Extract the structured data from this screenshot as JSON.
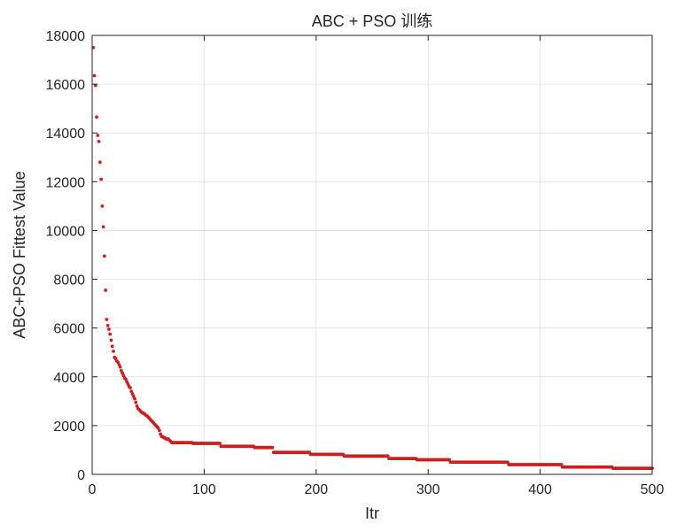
{
  "chart_data": {
    "type": "scatter",
    "title": "ABC + PSO 训练",
    "xlabel": "Itr",
    "ylabel": "ABC+PSO Fittest Value",
    "xlim": [
      0,
      500
    ],
    "ylim": [
      0,
      18000
    ],
    "xticks": [
      0,
      100,
      200,
      300,
      400,
      500
    ],
    "yticks": [
      0,
      2000,
      4000,
      6000,
      8000,
      10000,
      12000,
      14000,
      16000,
      18000
    ],
    "grid": true,
    "legend": "none",
    "marker_color": "#cc1f1f",
    "series": [
      {
        "points": [
          [
            1,
            17500
          ],
          [
            2,
            16350
          ],
          [
            3,
            15950
          ],
          [
            4,
            14650
          ],
          [
            5,
            13900
          ],
          [
            6,
            13650
          ],
          [
            7,
            12800
          ],
          [
            8,
            12100
          ],
          [
            9,
            11000
          ],
          [
            10,
            10150
          ],
          [
            11,
            8950
          ],
          [
            12,
            7550
          ],
          [
            13,
            6350
          ],
          [
            14,
            6100
          ],
          [
            15,
            5950
          ],
          [
            16,
            5750
          ],
          [
            17,
            5500
          ],
          [
            18,
            5250
          ],
          [
            19,
            5050
          ],
          [
            20,
            4800
          ],
          [
            21,
            4750
          ],
          [
            22,
            4650
          ],
          [
            23,
            4600
          ],
          [
            24,
            4500
          ],
          [
            25,
            4400
          ],
          [
            26,
            4250
          ],
          [
            27,
            4150
          ],
          [
            28,
            4050
          ],
          [
            29,
            3950
          ],
          [
            30,
            3900
          ],
          [
            31,
            3800
          ],
          [
            32,
            3700
          ],
          [
            33,
            3600
          ],
          [
            34,
            3550
          ],
          [
            35,
            3400
          ],
          [
            36,
            3300
          ],
          [
            37,
            3200
          ],
          [
            38,
            3100
          ],
          [
            39,
            2950
          ],
          [
            40,
            2800
          ],
          [
            41,
            2700
          ],
          [
            42,
            2650
          ],
          [
            43,
            2600
          ],
          [
            44,
            2550
          ],
          [
            45,
            2520
          ],
          [
            46,
            2500
          ],
          [
            47,
            2470
          ],
          [
            48,
            2420
          ],
          [
            49,
            2400
          ],
          [
            50,
            2350
          ],
          [
            51,
            2300
          ],
          [
            52,
            2250
          ],
          [
            53,
            2200
          ],
          [
            54,
            2150
          ],
          [
            55,
            2100
          ],
          [
            56,
            2050
          ],
          [
            57,
            2000
          ],
          [
            58,
            1950
          ],
          [
            59,
            1900
          ],
          [
            60,
            1800
          ],
          [
            61,
            1650
          ],
          [
            62,
            1550
          ],
          [
            63,
            1550
          ],
          [
            64,
            1500
          ],
          [
            65,
            1500
          ],
          [
            66,
            1450
          ],
          [
            67,
            1450
          ],
          [
            68,
            1450
          ],
          [
            69,
            1400
          ],
          [
            70,
            1350
          ]
        ],
        "steps": [
          [
            71,
            1300
          ],
          [
            90,
            1270
          ],
          [
            115,
            1150
          ],
          [
            145,
            1100
          ],
          [
            162,
            900
          ],
          [
            195,
            820
          ],
          [
            225,
            750
          ],
          [
            265,
            650
          ],
          [
            290,
            600
          ],
          [
            320,
            500
          ],
          [
            372,
            400
          ],
          [
            420,
            300
          ],
          [
            465,
            250
          ],
          [
            500,
            250
          ]
        ]
      }
    ]
  }
}
